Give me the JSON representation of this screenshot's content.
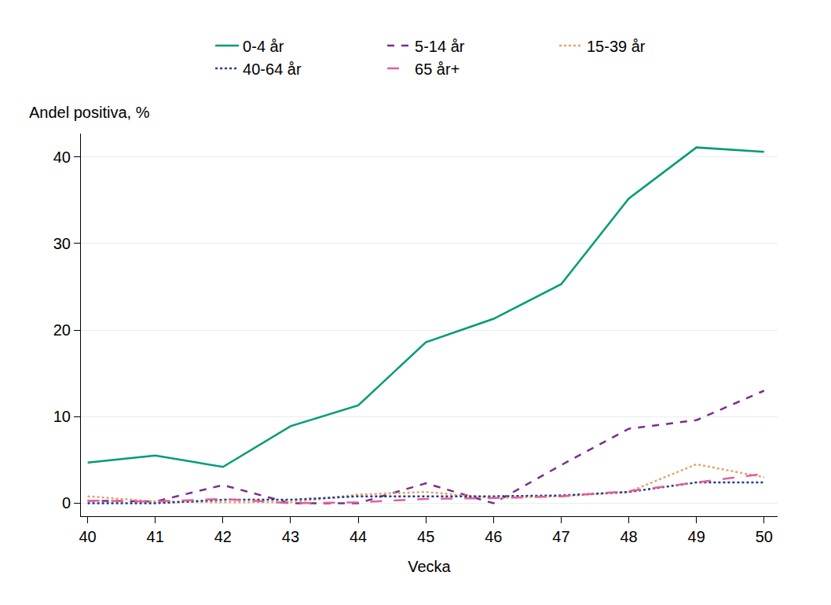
{
  "chart_data": {
    "type": "line",
    "x_label": "Vecka",
    "y_label": "Andel positiva, %",
    "x": [
      40,
      41,
      42,
      43,
      44,
      45,
      46,
      47,
      48,
      49,
      50
    ],
    "series": [
      {
        "name": "0-4 år",
        "color": "#009b77",
        "line_style": "solid",
        "values": [
          4.7,
          5.5,
          4.2,
          8.9,
          11.3,
          18.6,
          21.3,
          25.3,
          35.2,
          41.1,
          40.6
        ]
      },
      {
        "name": "5-14 år",
        "color": "#7b2d8e",
        "line_style": "dash",
        "values": [
          0.3,
          0.2,
          2.1,
          0.0,
          0.0,
          2.3,
          0.0,
          4.4,
          8.6,
          9.6,
          13.0
        ]
      },
      {
        "name": "15-39 år",
        "color": "#e8a366",
        "line_style": "dot",
        "values": [
          0.8,
          0.2,
          0.1,
          0.1,
          1.0,
          1.3,
          0.6,
          0.8,
          1.3,
          4.5,
          3.0
        ]
      },
      {
        "name": "40-64 år",
        "color": "#1f3a8a",
        "line_style": "dot",
        "values": [
          0.0,
          0.0,
          0.4,
          0.4,
          0.8,
          0.8,
          0.8,
          0.9,
          1.3,
          2.4,
          2.4
        ]
      },
      {
        "name": "65 år+",
        "color": "#e0609a",
        "line_style": "longdash",
        "values": [
          0.3,
          0.2,
          0.5,
          0.0,
          0.1,
          0.5,
          0.6,
          0.8,
          1.4,
          2.4,
          3.4
        ]
      }
    ],
    "xlim": [
      39.9,
      50.2
    ],
    "ylim": [
      -1.5,
      42.7
    ],
    "xticks": [
      40,
      41,
      42,
      43,
      44,
      45,
      46,
      47,
      48,
      49,
      50
    ],
    "yticks": [
      0,
      10,
      20,
      30,
      40
    ],
    "grid": true,
    "legend": "top"
  }
}
